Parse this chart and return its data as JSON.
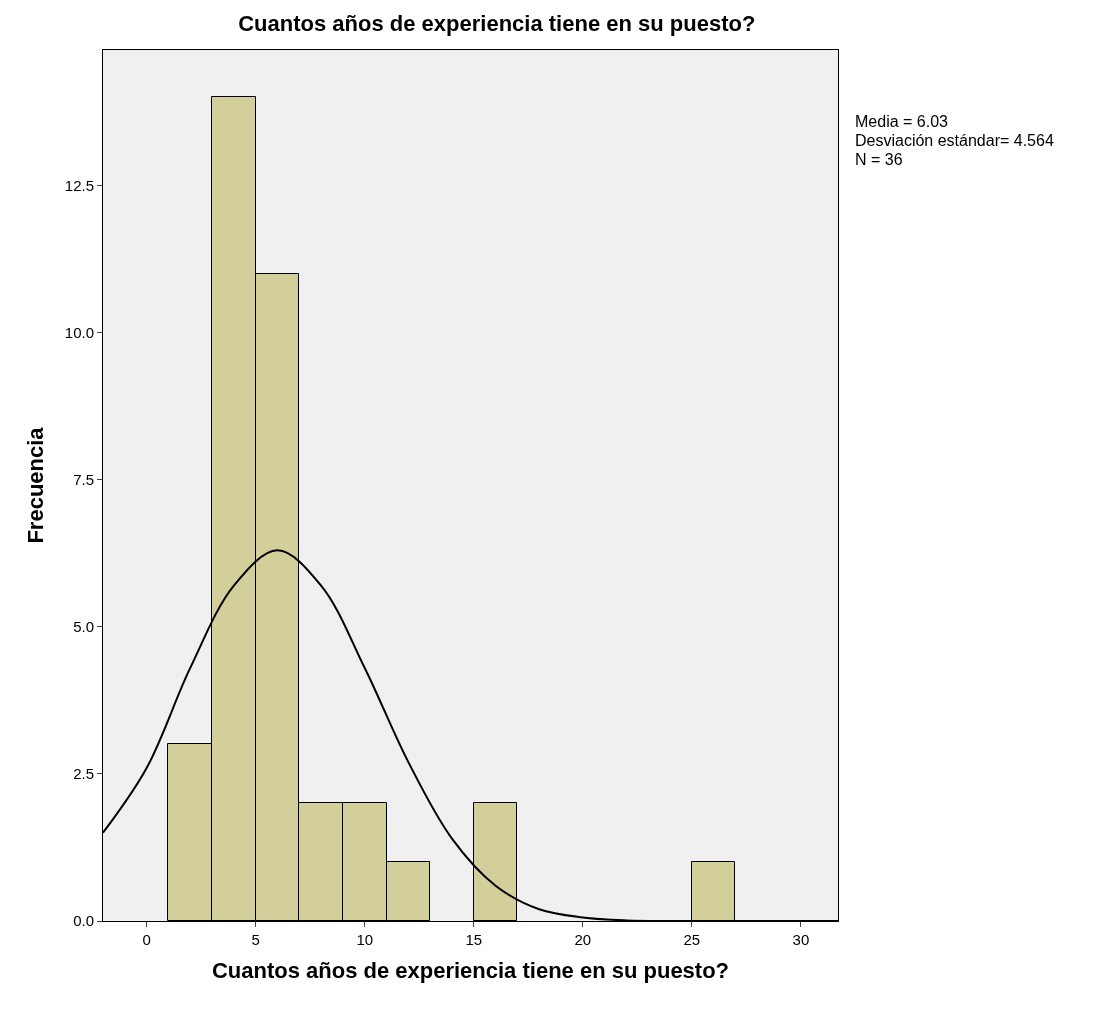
{
  "chart_data": {
    "type": "histogram",
    "title": "Cuantos años de experiencia tiene en su puesto?",
    "xlabel": "Cuantos años de experiencia tiene en su puesto?",
    "ylabel": "Frecuencia",
    "series": [
      {
        "color": "#d3cf9a",
        "bins": [
          1,
          3,
          5,
          7,
          9,
          11,
          13,
          15,
          17,
          19,
          21,
          23,
          25,
          27
        ],
        "values": [
          3,
          14,
          11,
          2,
          2,
          1,
          0,
          2,
          0,
          0,
          0,
          0,
          1
        ]
      },
      {
        "type": "line",
        "color": "#000000",
        "x": [
          -2,
          0,
          2,
          4,
          6,
          8,
          10,
          12,
          14,
          16,
          18,
          20,
          22,
          24,
          26,
          28,
          30,
          31.7
        ],
        "values": [
          1.5,
          2.6,
          4.3,
          5.7,
          6.3,
          5.7,
          4.3,
          2.7,
          1.4,
          0.6,
          0.2,
          0.06,
          0.01,
          0,
          0,
          0,
          0,
          0
        ]
      }
    ],
    "xlim": [
      -2,
      31.7
    ],
    "xticks": [
      0,
      5,
      10,
      15,
      20,
      25,
      30
    ],
    "ylim": [
      0,
      14.8
    ],
    "yticks": [
      {
        "value": 0,
        "label": "0.0"
      },
      {
        "value": 2.5,
        "label": "2.5"
      },
      {
        "value": 5,
        "label": "5.0"
      },
      {
        "value": 7.5,
        "label": "7.5"
      },
      {
        "value": 10,
        "label": "10.0"
      },
      {
        "value": 12.5,
        "label": "12.5"
      }
    ],
    "grid": false,
    "annotations": [
      "Media = 6.03",
      "Desviación estándar= 4.564",
      "N = 36"
    ]
  }
}
